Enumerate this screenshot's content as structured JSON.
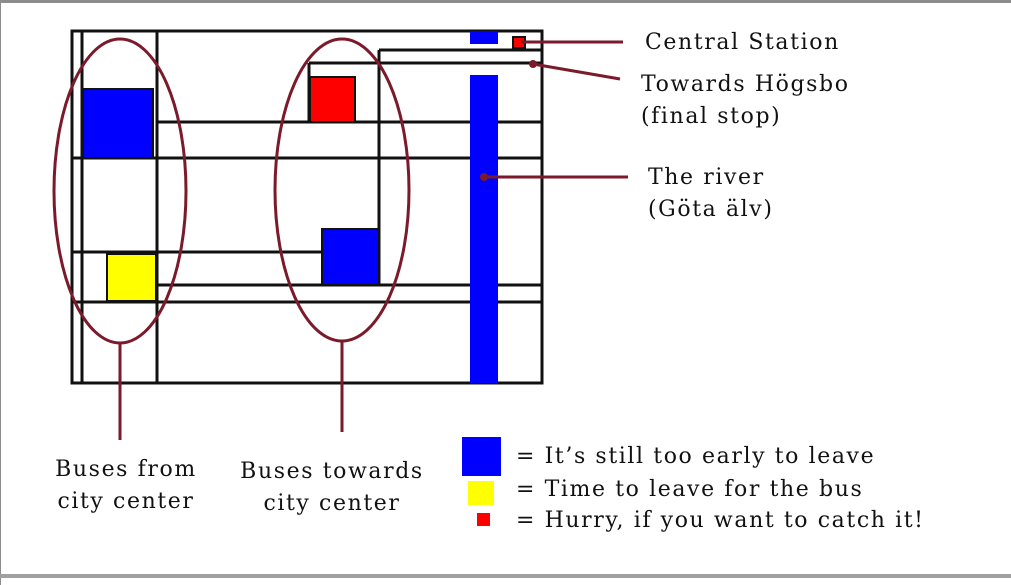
{
  "colors": {
    "blue": "#0000ff",
    "yellow": "#ffff00",
    "red": "#ff0000",
    "line": "#111111",
    "callout": "#7a1a2a"
  },
  "callouts": {
    "central_station": "Central Station",
    "towards_hogsbo": [
      "Towards Högsbo",
      "(final stop)"
    ],
    "river": [
      "The river",
      "(Göta älv)"
    ],
    "from_center": [
      "Buses from",
      "city center"
    ],
    "towards_center": [
      "Buses towards",
      "city center"
    ]
  },
  "legend": [
    {
      "color": "blue",
      "text": "= It’s still too early to leave"
    },
    {
      "color": "yellow",
      "text": "= Time to leave for the bus"
    },
    {
      "color": "red",
      "text": "= Hurry, if you want to catch it!"
    }
  ]
}
